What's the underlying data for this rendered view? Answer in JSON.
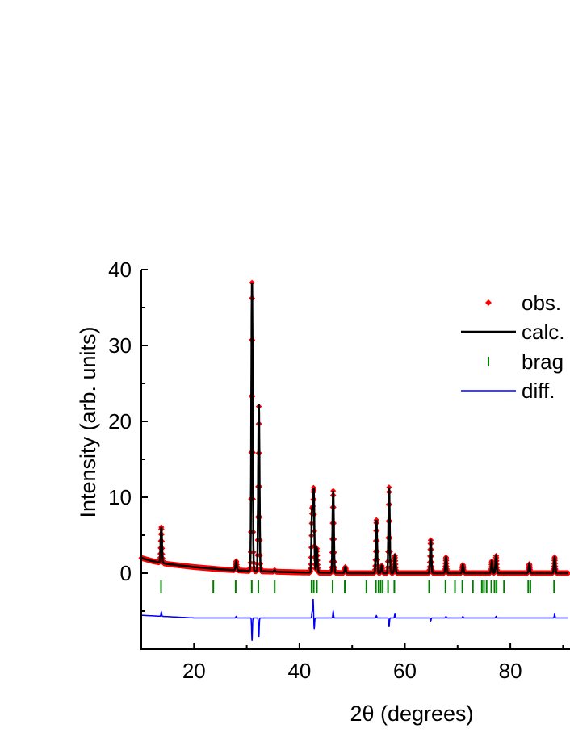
{
  "chart_data": {
    "type": "line",
    "title": "",
    "xlabel": "2θ (degrees)",
    "ylabel": "Intensity (arb. units)",
    "xlim": [
      10,
      91
    ],
    "ylim": [
      -10,
      40
    ],
    "x_ticks": [
      20,
      40,
      60,
      80
    ],
    "x_tick_labels": [
      "20",
      "40",
      "60",
      "80"
    ],
    "y_ticks": [
      0,
      10,
      20,
      30,
      40
    ],
    "y_tick_labels": [
      "0",
      "10",
      "20",
      "30",
      "40"
    ],
    "grid": false,
    "legend_position": "top-right",
    "colors": {
      "obs": "#ff0000",
      "calc": "#000000",
      "bragg": "#008000",
      "diff": "#0000ff"
    },
    "legend": [
      {
        "key": "obs",
        "label": "obs.",
        "marker": "diamond"
      },
      {
        "key": "calc",
        "label": "calc.",
        "marker": "line"
      },
      {
        "key": "bragg",
        "label": "brag",
        "marker": "tick"
      },
      {
        "key": "diff",
        "label": "diff.",
        "marker": "line"
      }
    ],
    "background": [
      [
        10,
        2.0
      ],
      [
        12,
        1.6
      ],
      [
        15,
        1.2
      ],
      [
        20,
        0.8
      ],
      [
        25,
        0.5
      ],
      [
        30,
        0.3
      ],
      [
        40,
        0.1
      ],
      [
        50,
        0.0
      ],
      [
        91,
        0.0
      ]
    ],
    "peaks": [
      [
        13.8,
        4.7
      ],
      [
        28.0,
        1.2
      ],
      [
        31.0,
        38.0
      ],
      [
        32.3,
        22.0
      ],
      [
        35.3,
        0.2
      ],
      [
        42.4,
        8.0
      ],
      [
        42.7,
        10.8
      ],
      [
        43.3,
        3.2
      ],
      [
        46.4,
        10.8
      ],
      [
        48.7,
        0.8
      ],
      [
        54.6,
        7.0
      ],
      [
        55.6,
        1.0
      ],
      [
        57.0,
        11.3
      ],
      [
        58.1,
        2.3
      ],
      [
        64.9,
        4.4
      ],
      [
        67.8,
        2.1
      ],
      [
        71.0,
        1.1
      ],
      [
        76.5,
        1.6
      ],
      [
        77.3,
        2.3
      ],
      [
        83.6,
        1.2
      ],
      [
        88.4,
        2.1
      ]
    ],
    "bragg_positions": [
      13.75,
      23.66,
      27.9,
      30.95,
      32.2,
      35.3,
      42.3,
      42.7,
      43.3,
      46.3,
      48.6,
      52.7,
      54.5,
      55.0,
      55.4,
      55.8,
      56.8,
      58.0,
      64.6,
      67.7,
      69.5,
      70.9,
      72.9,
      74.6,
      75.0,
      75.5,
      76.4,
      77.0,
      77.4,
      78.8,
      83.4,
      83.8,
      88.3
    ],
    "bragg_level": -1.8,
    "diff_offset": -5.9,
    "diff_spikes": [
      [
        13.8,
        0.6
      ],
      [
        28.0,
        0.2
      ],
      [
        31.0,
        -3.0
      ],
      [
        32.3,
        -2.5
      ],
      [
        42.4,
        0.8
      ],
      [
        42.6,
        2.5
      ],
      [
        42.8,
        -1.5
      ],
      [
        46.4,
        0.9
      ],
      [
        54.6,
        0.3
      ],
      [
        57.0,
        -1.2
      ],
      [
        58.1,
        0.5
      ],
      [
        64.9,
        -0.4
      ],
      [
        67.8,
        0.2
      ],
      [
        71.0,
        0.2
      ],
      [
        77.3,
        0.2
      ],
      [
        88.4,
        0.5
      ]
    ]
  }
}
